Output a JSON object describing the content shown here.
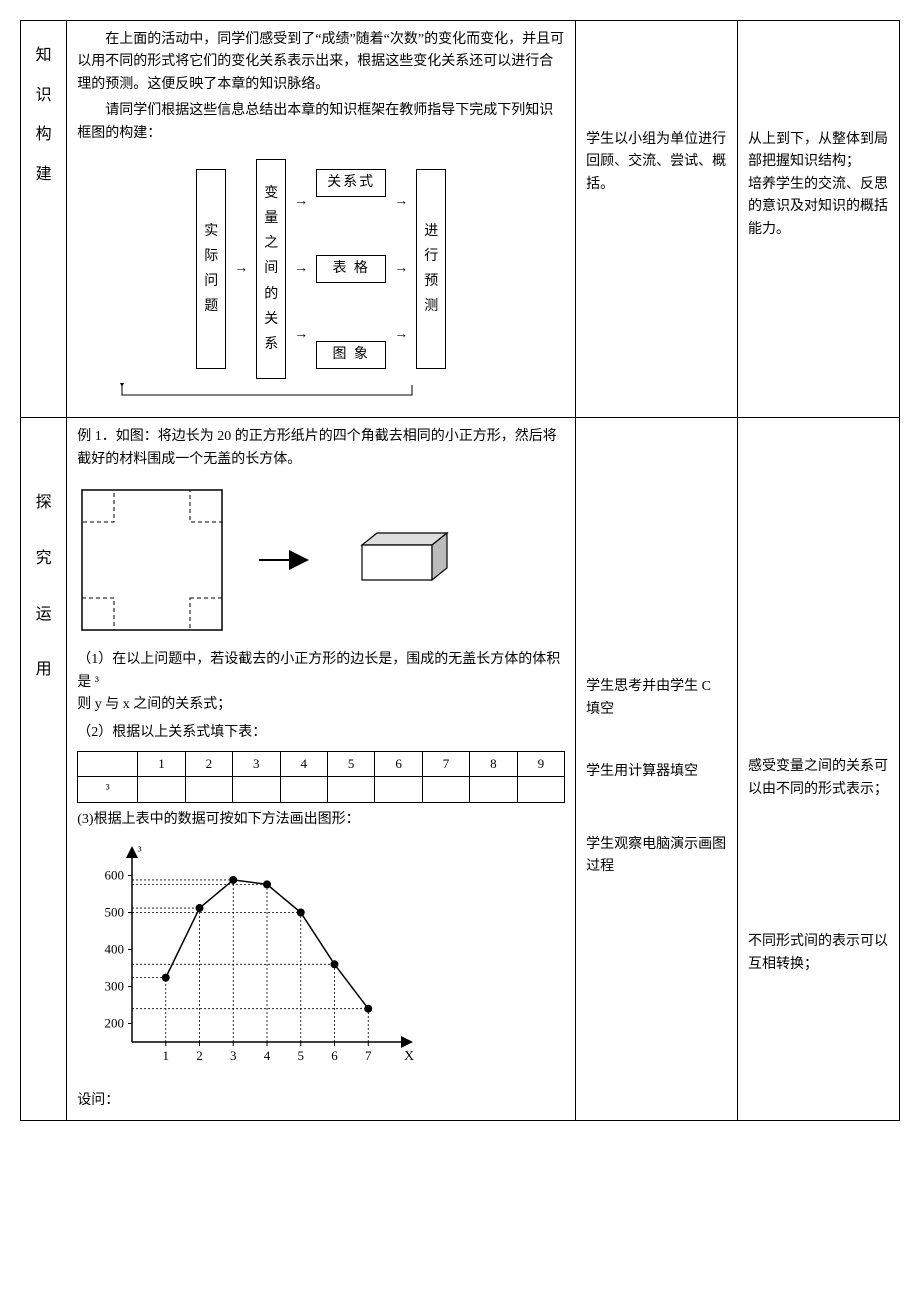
{
  "row1": {
    "label_chars": [
      "知",
      "识",
      "构",
      "建"
    ],
    "intro1": "在上面的活动中，同学们感受到了“成绩”随着“次数”的变化而变化，并且可以用不同的形式将它们的变化关系表示出来，根据这些变化关系还可以进行合理的预测。这便反映了本章的知识脉络。",
    "intro2": "请同学们根据这些信息总结出本章的知识框架在教师指导下完成下列知识框图的构建：",
    "flow": {
      "left_box_chars": [
        "实",
        "际",
        "问",
        "题"
      ],
      "mid_box_chars": [
        "变",
        "量",
        "之",
        "间",
        "的",
        "关",
        "系"
      ],
      "center_boxes": [
        "关系式",
        "表  格",
        "图  象"
      ],
      "right_box_chars": [
        "进",
        "行",
        "预",
        "测"
      ]
    },
    "col3": "学生以小组为单位进行回顾、交流、尝试、概括。",
    "col4": "从上到下，从整体到局部把握知识结构；\n培养学生的交流、反思的意识及对知识的概括能力。"
  },
  "row2": {
    "label_chars": [
      "探",
      "究",
      "运",
      "用"
    ],
    "example_title": "例 1．如图：将边长为 20 的正方形纸片的四个角截去相同的小正方形，然后将截好的材料围成一个无盖的长方体。",
    "q1": "（1）在以上问题中，若设截去的小正方形的边长是，围成的无盖长方体的体积是 ³",
    "q1b": "则 y 与 x 之间的关系式；",
    "q2": "（2）根据以上关系式填下表：",
    "table_headers": [
      "1",
      "2",
      "3",
      "4",
      "5",
      "6",
      "7",
      "8",
      "9"
    ],
    "table_row_label": "³",
    "q3": "(3)根据上表中的数据可按如下方法画出图形：",
    "chart": {
      "y_label": "³",
      "x_label": "X",
      "y_ticks": [
        200,
        300,
        400,
        500,
        600
      ],
      "x_ticks": [
        1,
        2,
        3,
        4,
        5,
        6,
        7
      ],
      "points": [
        {
          "x": 1,
          "y": 324
        },
        {
          "x": 2,
          "y": 512
        },
        {
          "x": 3,
          "y": 588
        },
        {
          "x": 4,
          "y": 576
        },
        {
          "x": 5,
          "y": 500
        },
        {
          "x": 6,
          "y": 360
        },
        {
          "x": 7,
          "y": 240
        }
      ],
      "xlim": [
        0,
        8
      ],
      "ylim": [
        150,
        650
      ],
      "line_color": "#000000",
      "point_color": "#000000",
      "grid_style": "dotted"
    },
    "footer": "设问：",
    "col3_items": [
      "学生思考并由学生 C 填空",
      "学生用计算器填空",
      "学生观察电脑演示画图过程"
    ],
    "col4_items": [
      "感受变量之间的关系可以由不同的形式表示；",
      "不同形式间的表示可以互相转换；"
    ]
  }
}
